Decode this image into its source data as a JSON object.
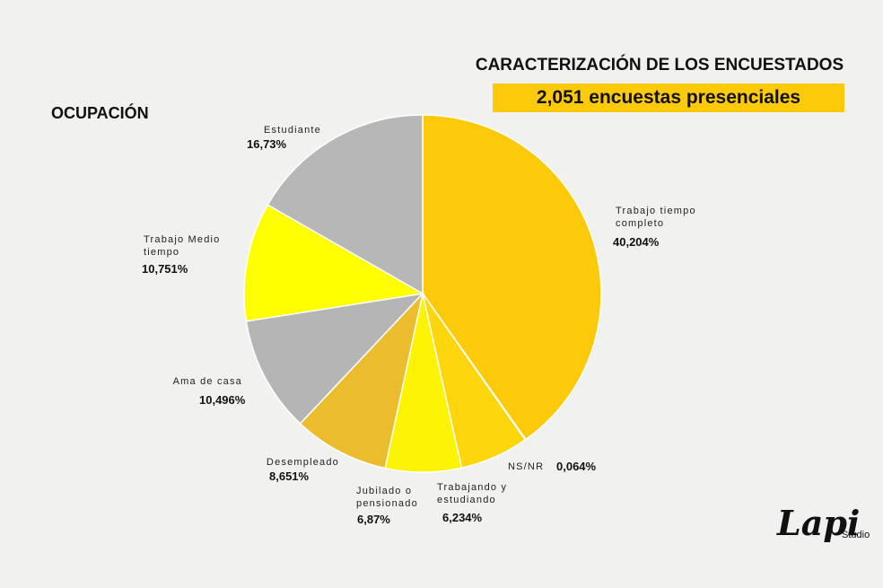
{
  "chart_data": {
    "type": "pie",
    "title": "CARACTERIZACIÓN DE LOS ENCUESTADOS",
    "subtitle": "2,051 encuestas presenciales",
    "label": "OCUPACIÓN",
    "categories": [
      "Trabajo tiempo completo",
      "NS/NR",
      "Trabajando y estudiando",
      "Jubilado o pensionado",
      "Desempleado",
      "Ama de casa",
      "Trabajo Medio tiempo",
      "Estudiante"
    ],
    "values": [
      40.204,
      0.064,
      6.234,
      6.87,
      8.651,
      10.496,
      10.751,
      16.73
    ],
    "value_labels": [
      "40,204%",
      "0,064%",
      "6,234%",
      "6,87%",
      "8,651%",
      "10,496%",
      "10,751%",
      "16,73%"
    ],
    "colors": [
      "#fdca0b",
      "#6b6b6b",
      "#fdd60e",
      "#fdf305",
      "#ebbd2e",
      "#b5b5b5",
      "#ffff00",
      "#b7b7b7"
    ],
    "logo": {
      "text": "Lapi",
      "sub": "Studio"
    }
  }
}
